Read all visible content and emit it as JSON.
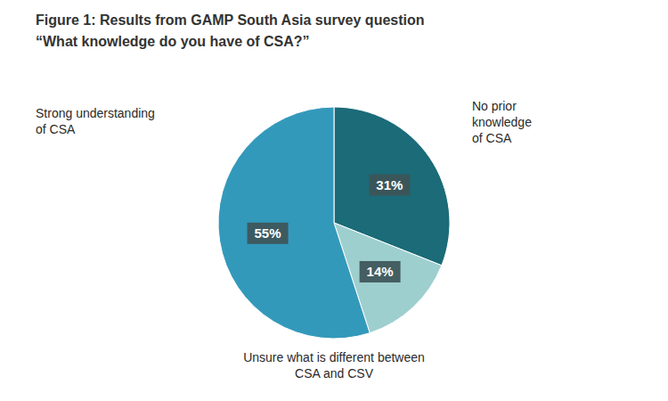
{
  "chart_data": {
    "type": "pie",
    "title": "Figure 1: Results from GAMP South Asia survey question",
    "subtitle": "“What knowledge do you have of CSA?”",
    "values": [
      31,
      14,
      55
    ],
    "value_labels": [
      "31%",
      "14%",
      "55%"
    ],
    "colors": [
      "#1b6b78",
      "#9ecfcf",
      "#3399bb"
    ],
    "data_labels": true,
    "annotations": [
      "No prior\nknowledge\nof CSA",
      "Strong understanding\nof CSA",
      "Unsure what is different between\nCSA and CSV"
    ]
  }
}
